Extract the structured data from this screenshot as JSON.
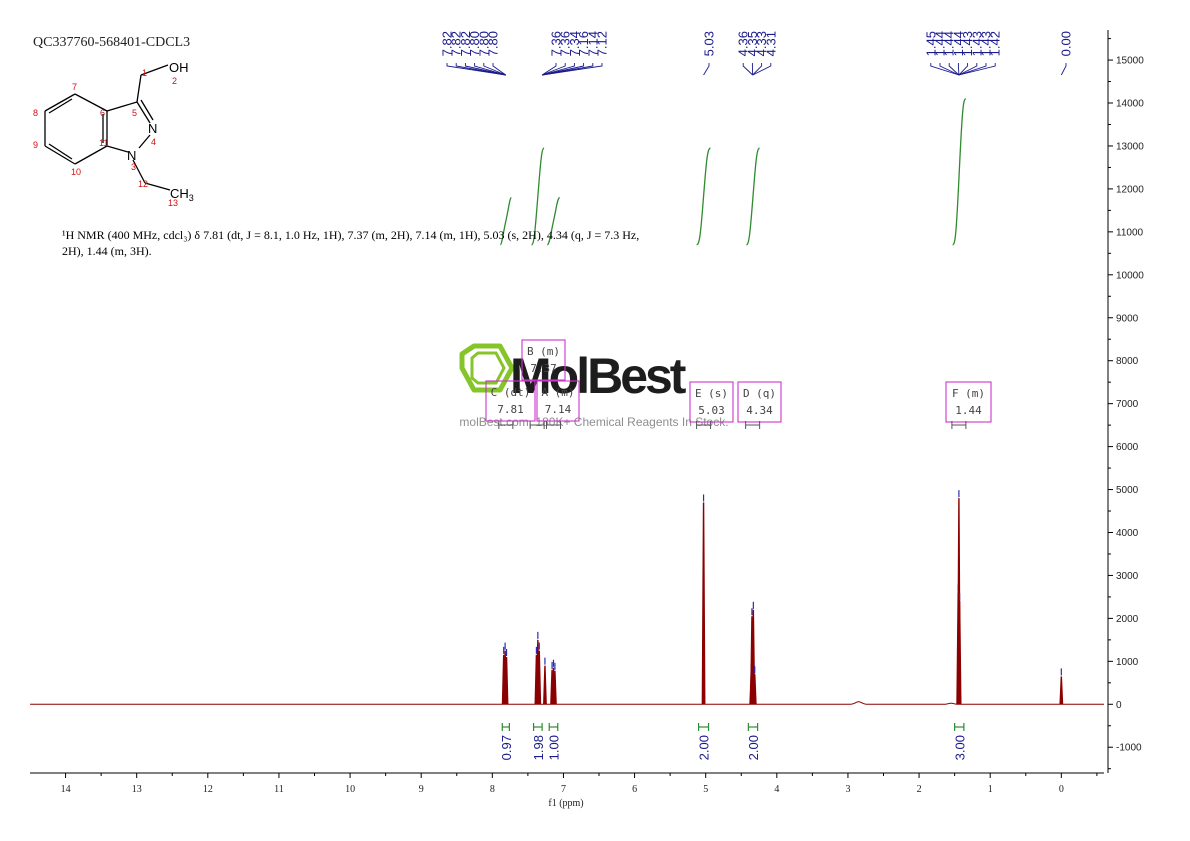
{
  "sample_id": "QC337760-568401-CDCL3",
  "nmr_description": "¹H NMR (400 MHz, cdcl₃) δ 7.81 (dt, J = 8.1, 1.0 Hz, 1H), 7.37 (m, 2H), 7.14 (m, 1H), 5.03 (s, 2H), 4.34 (q, J = 7.3 Hz, 2H), 1.44 (m, 3H).",
  "structure": {
    "group_oh": "OH",
    "group_ch3": "CH",
    "ch3_sub": "3",
    "atom_n4": "N",
    "atom_n1": "N",
    "atom_numbers": [
      "1",
      "2",
      "3",
      "4",
      "5",
      "6",
      "7",
      "8",
      "9",
      "10",
      "11",
      "12",
      "13"
    ]
  },
  "watermark": {
    "brand": "MolBest",
    "tagline": "molBest.com, 180K+ Chemical Reagents In Stock."
  },
  "colors": {
    "spectrum": "#8b0000",
    "peak_labels": "#1a1a8c",
    "integral": "#2e8b2e",
    "multiplet_box": "#cc33cc",
    "watermark_logo": "#7fc21f",
    "atom_number": "#d01010"
  },
  "chart_data": {
    "type": "line",
    "title": "",
    "xlabel": "f1 (ppm)",
    "ylabel": "",
    "xlim": [
      14.5,
      -0.6
    ],
    "ylim": [
      -1600,
      15700
    ],
    "x_axis_reversed": true,
    "x_ticks": [
      "14",
      "13",
      "12",
      "11",
      "10",
      "9",
      "8",
      "7",
      "6",
      "5",
      "4",
      "3",
      "2",
      "1",
      "0"
    ],
    "y_ticks": [
      "-1000",
      "0",
      "1000",
      "2000",
      "3000",
      "4000",
      "5000",
      "6000",
      "7000",
      "8000",
      "9000",
      "10000",
      "11000",
      "12000",
      "13000",
      "14000",
      "15000"
    ],
    "grid": false,
    "peak_label_groups": [
      {
        "labels": [
          "7.82",
          "7.82",
          "7.82",
          "7.80",
          "7.80",
          "7.80"
        ],
        "anchor_ppm": 7.81
      },
      {
        "labels": [
          "7.36",
          "7.36",
          "7.34",
          "7.16",
          "7.14",
          "7.12"
        ],
        "anchor_ppm": 7.3
      },
      {
        "labels": [
          "5.03"
        ],
        "anchor_ppm": 5.03
      },
      {
        "labels": [
          "4.36",
          "4.35",
          "4.33",
          "4.31"
        ],
        "anchor_ppm": 4.34
      },
      {
        "labels": [
          "1.45",
          "1.44",
          "1.44",
          "1.44",
          "1.43",
          "1.43",
          "1.43",
          "1.42"
        ],
        "anchor_ppm": 1.44
      },
      {
        "labels": [
          "0.00"
        ],
        "anchor_ppm": 0.0
      }
    ],
    "peaks": [
      {
        "ppm": 7.84,
        "height": 1150
      },
      {
        "ppm": 7.82,
        "height": 1250
      },
      {
        "ppm": 7.8,
        "height": 1100
      },
      {
        "ppm": 7.38,
        "height": 1150
      },
      {
        "ppm": 7.36,
        "height": 1500
      },
      {
        "ppm": 7.34,
        "height": 1250
      },
      {
        "ppm": 7.26,
        "height": 900
      },
      {
        "ppm": 7.16,
        "height": 800
      },
      {
        "ppm": 7.14,
        "height": 850
      },
      {
        "ppm": 7.12,
        "height": 780
      },
      {
        "ppm": 5.03,
        "height": 4700
      },
      {
        "ppm": 4.36,
        "height": 750
      },
      {
        "ppm": 4.35,
        "height": 2050
      },
      {
        "ppm": 4.33,
        "height": 2200
      },
      {
        "ppm": 4.31,
        "height": 700
      },
      {
        "ppm": 1.45,
        "height": 2600
      },
      {
        "ppm": 1.44,
        "height": 4800
      },
      {
        "ppm": 1.43,
        "height": 2400
      },
      {
        "ppm": 0.0,
        "height": 650
      }
    ],
    "integrals": [
      {
        "from": 7.86,
        "to": 7.76,
        "value": "0.97",
        "curve_bottom": 10700,
        "curve_top": 11800
      },
      {
        "from": 7.42,
        "to": 7.3,
        "value": "1.98",
        "curve_bottom": 10700,
        "curve_top": 12950
      },
      {
        "from": 7.2,
        "to": 7.08,
        "value": "1.00",
        "curve_bottom": 10700,
        "curve_top": 11800
      },
      {
        "from": 5.1,
        "to": 4.96,
        "value": "2.00",
        "curve_bottom": 10700,
        "curve_top": 12950
      },
      {
        "from": 4.4,
        "to": 4.27,
        "value": "2.00",
        "curve_bottom": 10700,
        "curve_top": 12950
      },
      {
        "from": 1.5,
        "to": 1.37,
        "value": "3.00",
        "curve_bottom": 10700,
        "curve_top": 14100
      }
    ],
    "multiplets": [
      {
        "id": "C",
        "kind": "(dt)",
        "shift": "7.81",
        "ppm": 7.81
      },
      {
        "id": "B",
        "kind": "(m)",
        "shift": "7.37",
        "ppm": 7.37
      },
      {
        "id": "A",
        "kind": "(m)",
        "shift": "7.14",
        "ppm": 7.14
      },
      {
        "id": "E",
        "kind": "(s)",
        "shift": "5.03",
        "ppm": 5.03
      },
      {
        "id": "D",
        "kind": "(q)",
        "shift": "4.34",
        "ppm": 4.34
      },
      {
        "id": "F",
        "kind": "(m)",
        "shift": "1.44",
        "ppm": 1.44
      }
    ]
  }
}
